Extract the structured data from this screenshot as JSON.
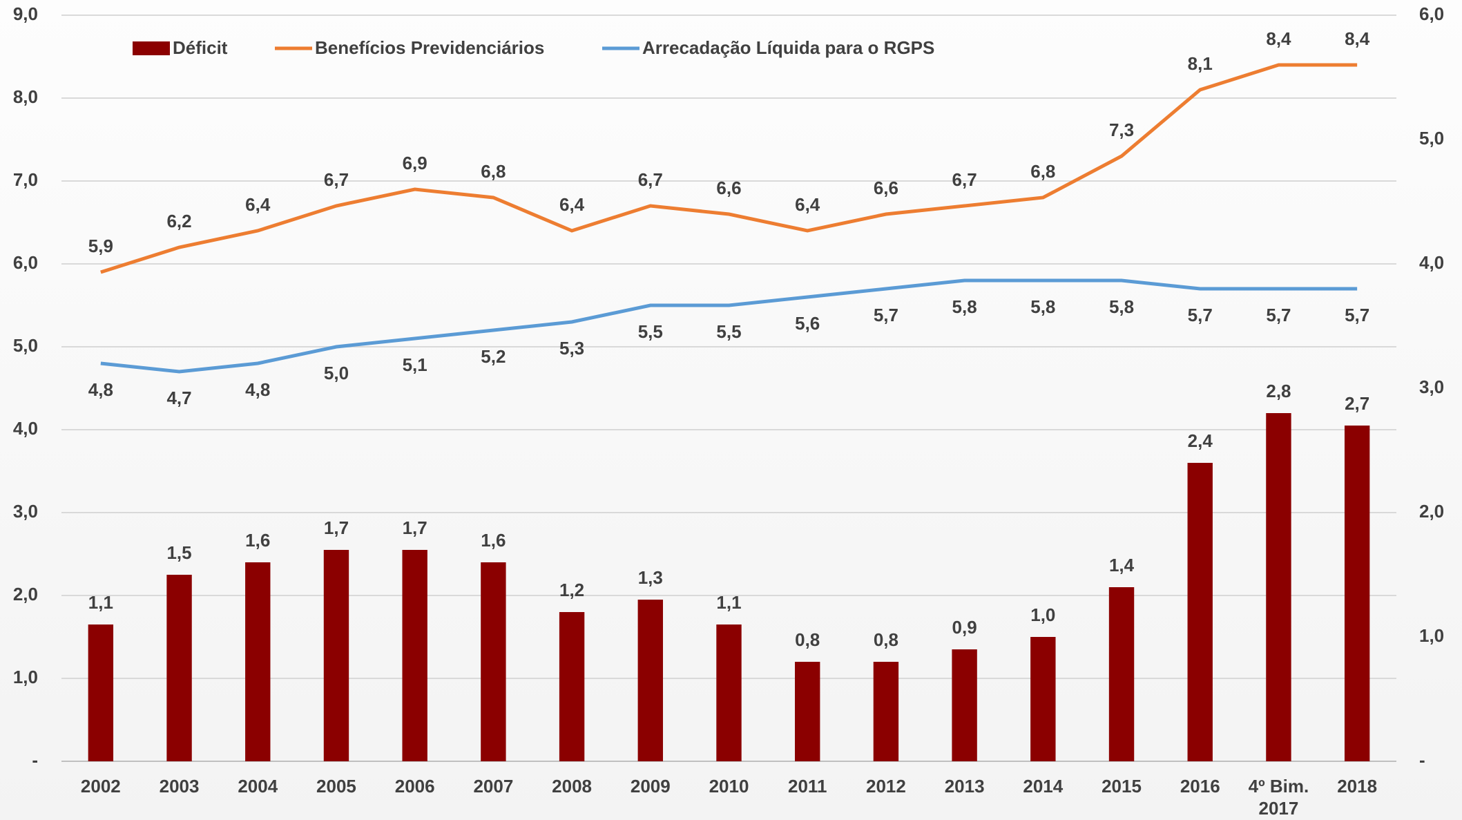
{
  "chart_data": {
    "type": "bar-line",
    "categories": [
      "2002",
      "2003",
      "2004",
      "2005",
      "2006",
      "2007",
      "2008",
      "2009",
      "2010",
      "2011",
      "2012",
      "2013",
      "2014",
      "2015",
      "2016",
      "4º Bim.\n2017",
      "2018"
    ],
    "series": [
      {
        "name": "Déficit",
        "type": "bar",
        "axis": "y2",
        "color": "#8b0000",
        "values": [
          1.1,
          1.5,
          1.6,
          1.7,
          1.7,
          1.6,
          1.2,
          1.3,
          1.1,
          0.8,
          0.8,
          0.9,
          1.0,
          1.4,
          2.4,
          2.8,
          2.7
        ],
        "value_labels": [
          "1,1",
          "1,5",
          "1,6",
          "1,7",
          "1,7",
          "1,6",
          "1,2",
          "1,3",
          "1,1",
          "0,8",
          "0,8",
          "0,9",
          "1,0",
          "1,4",
          "2,4",
          "2,8",
          "2,7"
        ]
      },
      {
        "name": "Benefícios Previdenciários",
        "type": "line",
        "color": "#ed7d31",
        "values": [
          5.9,
          6.2,
          6.4,
          6.7,
          6.9,
          6.8,
          6.4,
          6.7,
          6.6,
          6.4,
          6.6,
          6.7,
          6.8,
          7.3,
          8.1,
          8.4,
          8.4
        ],
        "value_labels": [
          "5,9",
          "6,2",
          "6,4",
          "6,7",
          "6,9",
          "6,8",
          "6,4",
          "6,7",
          "6,6",
          "6,4",
          "6,6",
          "6,7",
          "6,8",
          "7,3",
          "8,1",
          "8,4",
          "8,4"
        ]
      },
      {
        "name": "Arrecadação Líquida para o RGPS",
        "type": "line",
        "color": "#5b9bd5",
        "values": [
          4.8,
          4.7,
          4.8,
          5.0,
          5.1,
          5.2,
          5.3,
          5.5,
          5.5,
          5.6,
          5.7,
          5.8,
          5.8,
          5.8,
          5.7,
          5.7,
          5.7
        ],
        "value_labels": [
          "4,8",
          "4,7",
          "4,8",
          "5,0",
          "5,1",
          "5,2",
          "5,3",
          "5,5",
          "5,5",
          "5,6",
          "5,7",
          "5,8",
          "5,8",
          "5,8",
          "5,7",
          "5,7",
          "5,7"
        ]
      }
    ],
    "ylim": [
      0,
      9
    ],
    "yticks": [
      {
        "value": 0,
        "label": "-"
      },
      {
        "value": 1,
        "label": "1,0"
      },
      {
        "value": 2,
        "label": "2,0"
      },
      {
        "value": 3,
        "label": "3,0"
      },
      {
        "value": 4,
        "label": "4,0"
      },
      {
        "value": 5,
        "label": "5,0"
      },
      {
        "value": 6,
        "label": "6,0"
      },
      {
        "value": 7,
        "label": "7,0"
      },
      {
        "value": 8,
        "label": "8,0"
      },
      {
        "value": 9,
        "label": "9,0"
      }
    ],
    "y2lim": [
      0,
      6
    ],
    "y2ticks": [
      {
        "value": 0,
        "label": "-"
      },
      {
        "value": 1,
        "label": "1,0"
      },
      {
        "value": 2,
        "label": "2,0"
      },
      {
        "value": 3,
        "label": "3,0"
      },
      {
        "value": 4,
        "label": "4,0"
      },
      {
        "value": 5,
        "label": "5,0"
      },
      {
        "value": 6,
        "label": "6,0"
      }
    ],
    "grid": true,
    "legend": "top"
  }
}
